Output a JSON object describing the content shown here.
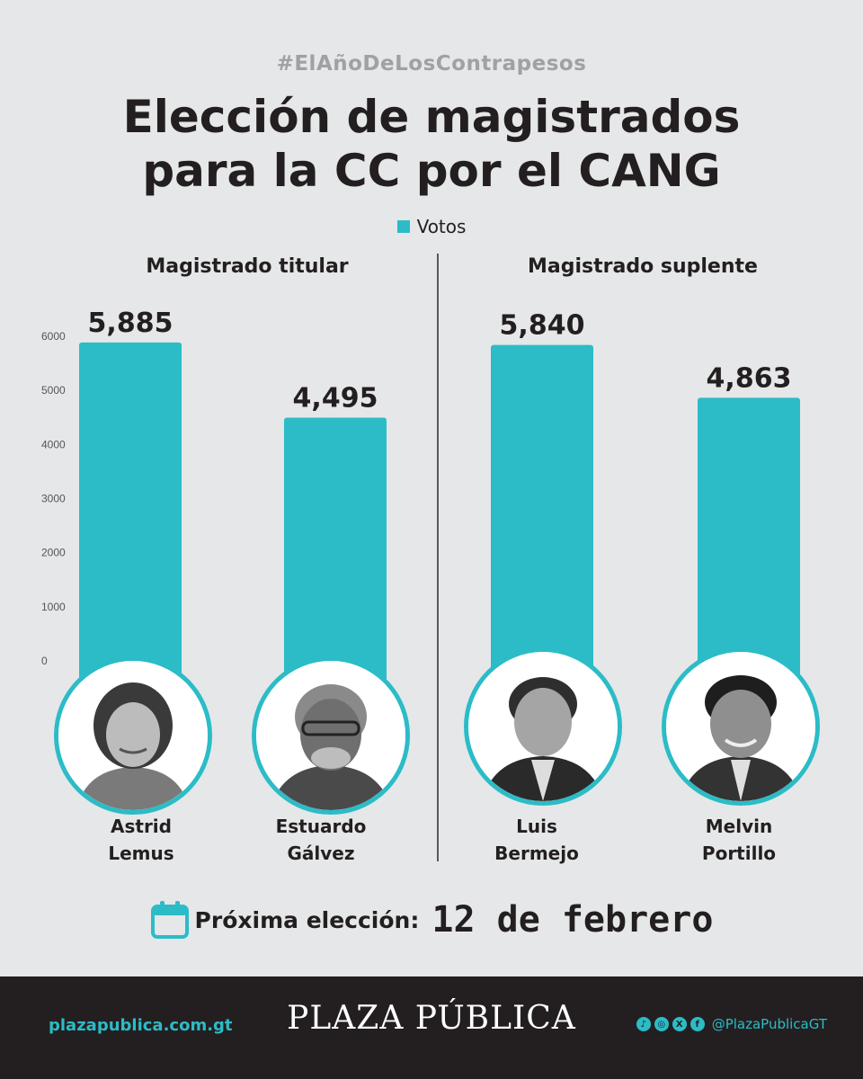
{
  "hashtag": "#ElAñoDeLosContrapesos",
  "title_line1": "Elección de magistrados",
  "title_line2": "para la CC por el CANG",
  "legend": "Votos",
  "colors": {
    "bar": "#2bbcc7",
    "background": "#e6e7e8",
    "text": "#231f20",
    "footer": "#231f20"
  },
  "chart_data": {
    "type": "bar",
    "title": "Elección de magistrados para la CC por el CANG",
    "legend": [
      "Votos"
    ],
    "ylim": [
      0,
      6000
    ],
    "yticks": [
      "6000",
      "5000",
      "4000",
      "3000",
      "2000",
      "1000",
      "0"
    ],
    "groups": [
      {
        "name": "Magistrado titular",
        "categories": [
          "Astrid Lemus",
          "Estuardo Gálvez"
        ],
        "values": [
          5885,
          4495
        ],
        "labels": [
          "5,885",
          "4,495"
        ]
      },
      {
        "name": "Magistrado suplente",
        "categories": [
          "Luis Bermejo",
          "Melvin Portillo"
        ],
        "values": [
          5840,
          4863
        ],
        "labels": [
          "5,840",
          "4,863"
        ]
      }
    ]
  },
  "candidates": [
    {
      "first": "Astrid",
      "last": "Lemus"
    },
    {
      "first": "Estuardo",
      "last": "Gálvez"
    },
    {
      "first": "Luis",
      "last": "Bermejo"
    },
    {
      "first": "Melvin",
      "last": "Portillo"
    }
  ],
  "next_election": {
    "label": "Próxima elección:",
    "date": "12 de febrero",
    "icon": "calendar-icon"
  },
  "footer": {
    "site": "plazapublica.com.gt",
    "logo": "PLAZA PÚBLICA",
    "handle": "@PlazaPublicaGT",
    "icons": [
      "tiktok-icon",
      "instagram-icon",
      "x-icon",
      "facebook-icon"
    ]
  }
}
